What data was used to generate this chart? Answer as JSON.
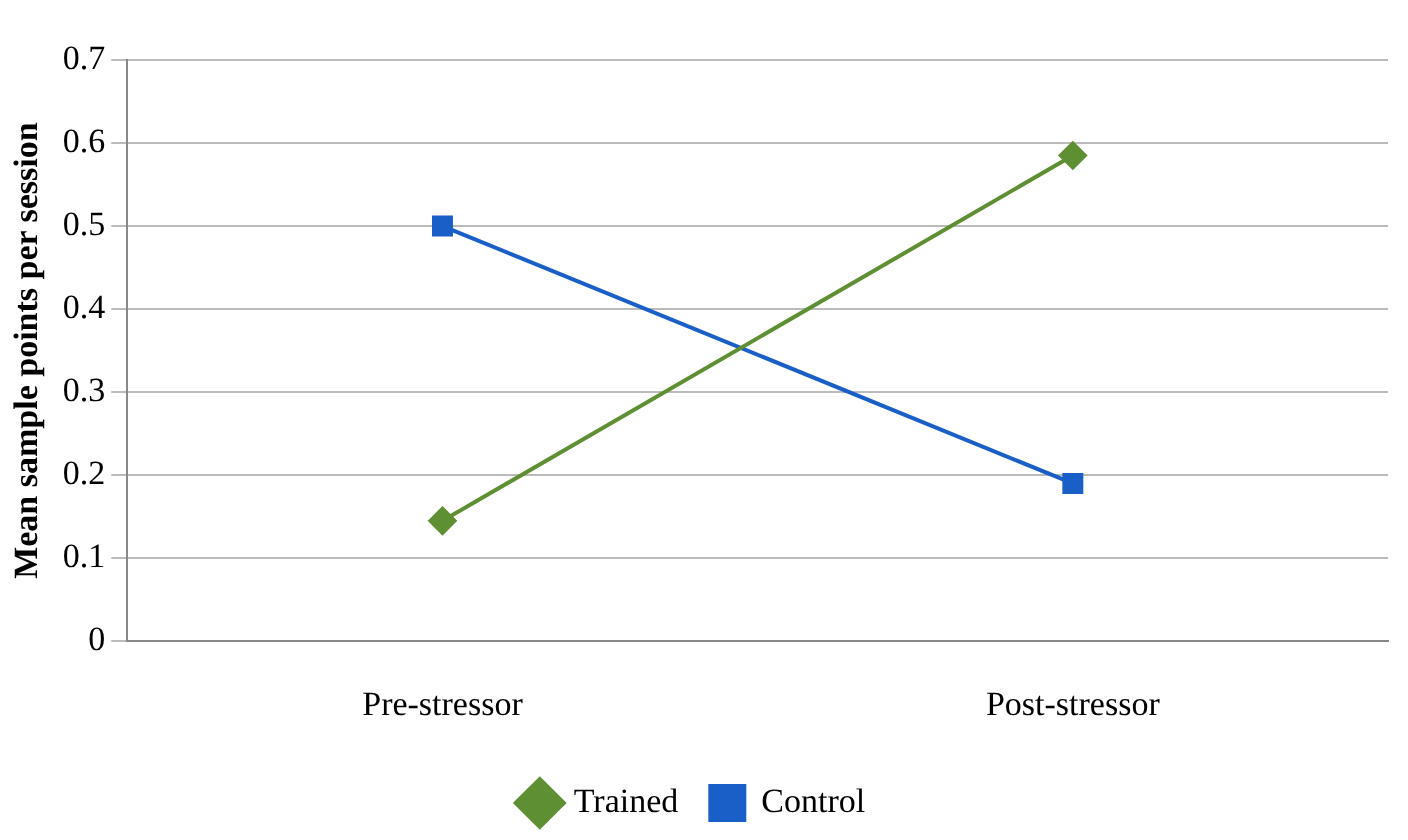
{
  "chart_data": {
    "type": "line",
    "ylabel": "Mean sample points per session",
    "categories": [
      "Pre-stressor",
      "Post-stressor"
    ],
    "series": [
      {
        "name": "Trained",
        "color": "#5e8f32",
        "values": [
          0.145,
          0.585
        ],
        "marker": "diamond"
      },
      {
        "name": "Control",
        "color": "#1a5fc8",
        "values": [
          0.5,
          0.19
        ],
        "marker": "square"
      }
    ],
    "ylim": [
      0,
      0.7
    ],
    "yticks": [
      0,
      0.1,
      0.2,
      0.3,
      0.4,
      0.5,
      0.6,
      0.7
    ],
    "grid": "y",
    "legend": "bottom"
  }
}
